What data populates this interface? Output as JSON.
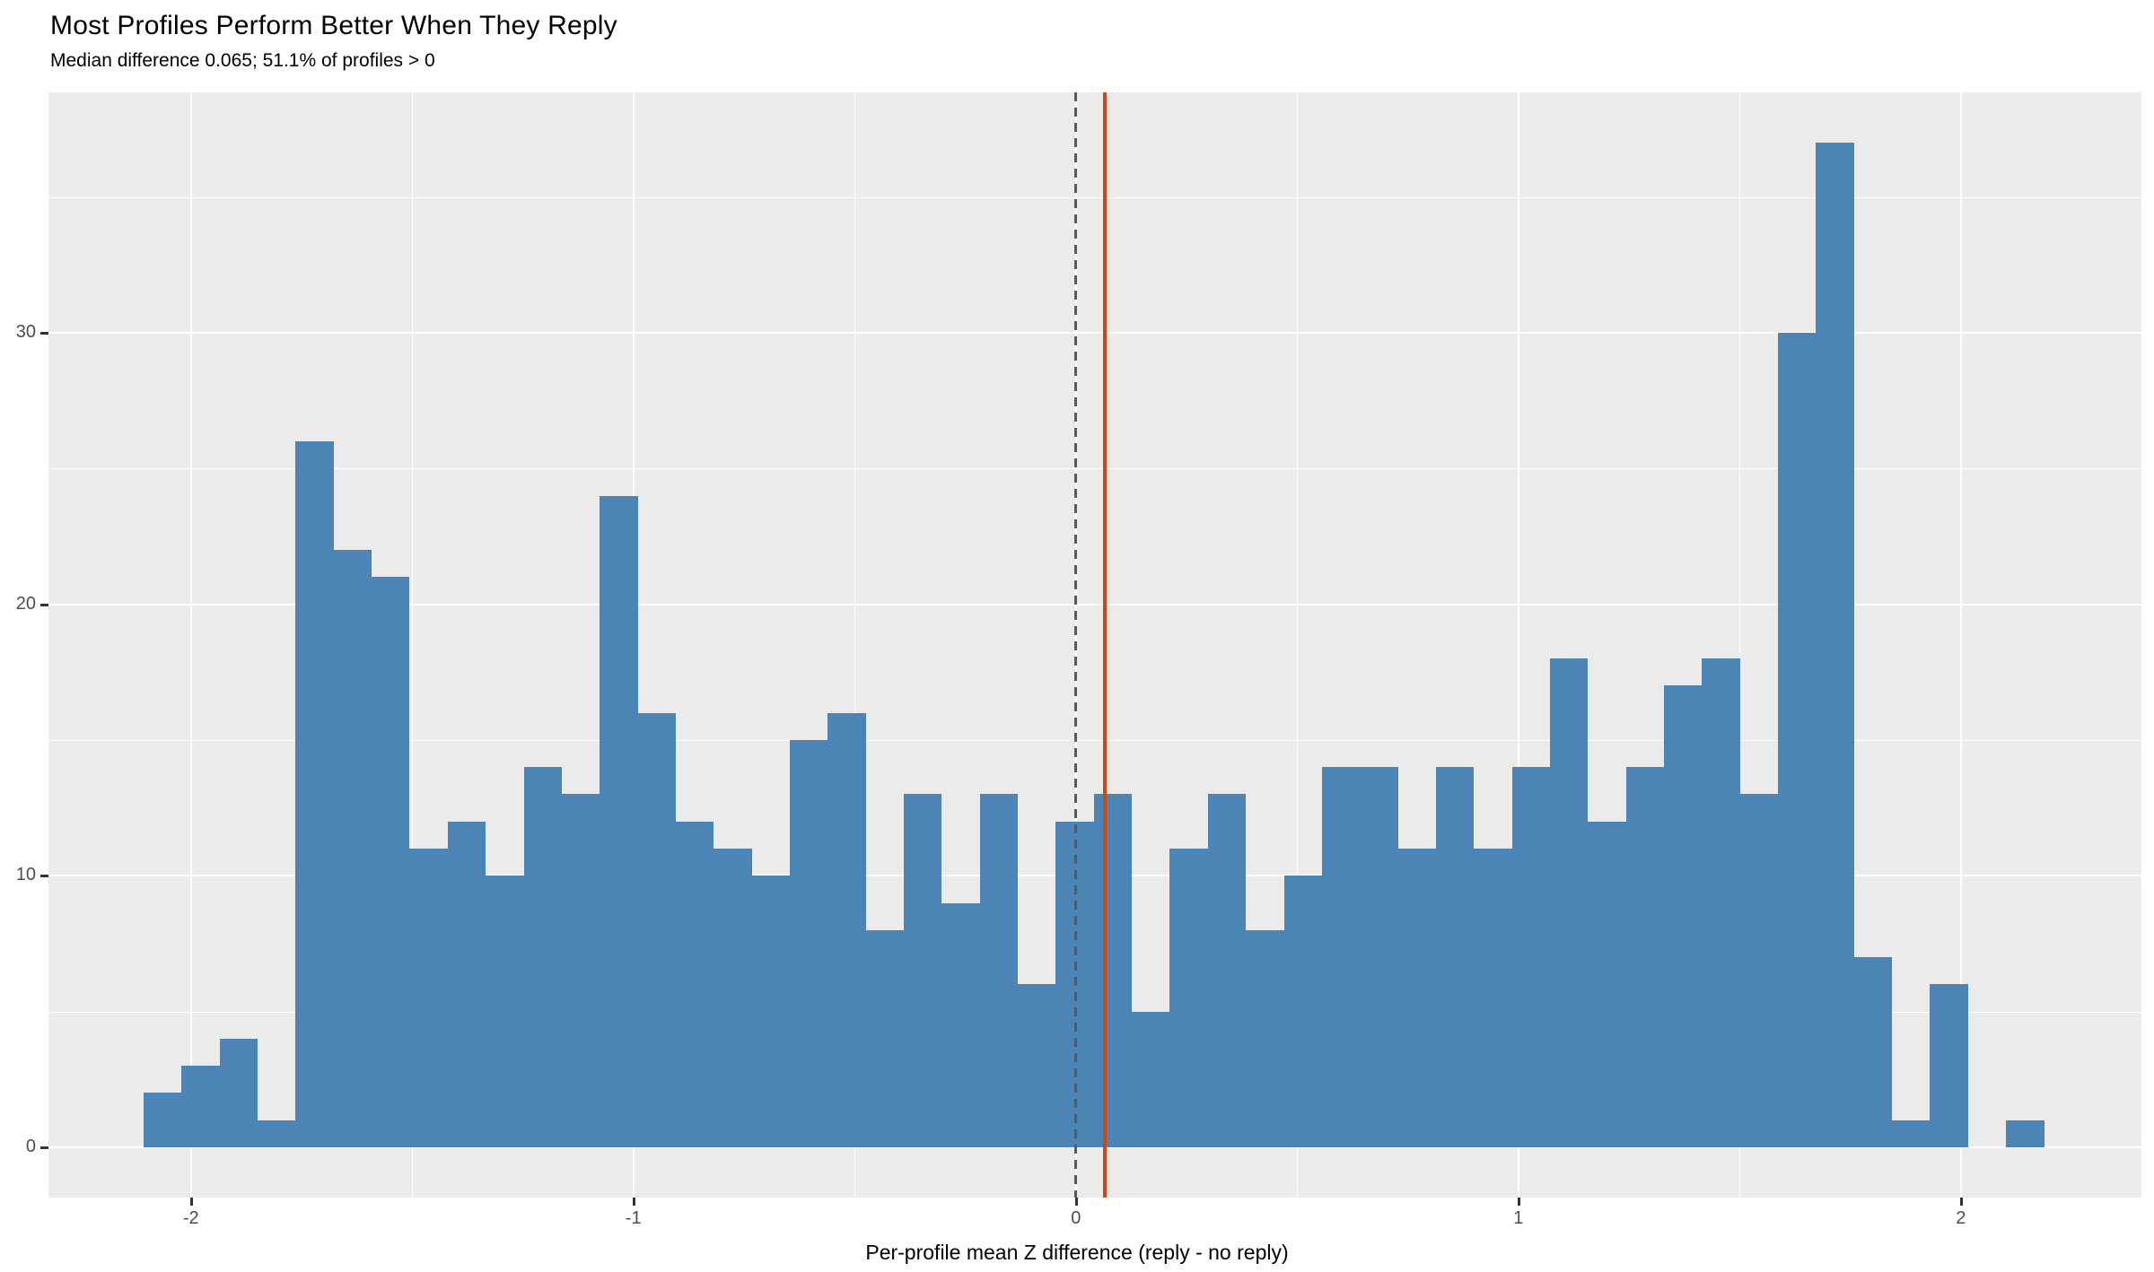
{
  "header": {
    "title": "Most Profiles Perform Better When They Reply",
    "subtitle": "Median difference 0.065; 51.1% of profiles > 0"
  },
  "chart_data": {
    "type": "bar",
    "subtype": "histogram",
    "title": "Most Profiles Perform Better When They Reply",
    "subtitle": "Median difference 0.065; 51.1% of profiles > 0",
    "xlabel": "Per-profile mean Z difference (reply - no reply)",
    "ylabel": "",
    "bins": {
      "start": -2.107,
      "width": 0.0859
    },
    "counts": [
      2,
      3,
      4,
      1,
      26,
      22,
      21,
      11,
      12,
      10,
      14,
      13,
      24,
      16,
      12,
      11,
      10,
      15,
      16,
      8,
      13,
      9,
      13,
      6,
      12,
      13,
      5,
      11,
      13,
      8,
      10,
      14,
      14,
      11,
      14,
      11,
      14,
      18,
      12,
      14,
      17,
      18,
      13,
      30,
      37,
      7,
      1,
      6,
      0,
      1
    ],
    "x_ticks": [
      -2,
      -1,
      0,
      1,
      2
    ],
    "x_tick_labels": [
      "-2",
      "-1",
      "0",
      "1",
      "2"
    ],
    "x_minor_ticks": [
      -1.5,
      -0.5,
      0.5,
      1.5
    ],
    "y_ticks": [
      0,
      10,
      20,
      30
    ],
    "y_tick_labels": [
      "0",
      "10",
      "20",
      "30"
    ],
    "y_minor_ticks": [
      5,
      15,
      25,
      35
    ],
    "xlim": [
      -2.322,
      2.408
    ],
    "ylim": [
      -1.85,
      38.85
    ],
    "grid": true,
    "legend_position": "none",
    "reference_lines": [
      {
        "x": 0,
        "style": "dashed",
        "color": "#595959",
        "label": "zero"
      },
      {
        "x": 0.065,
        "style": "solid",
        "color": "#CB4714",
        "label": "median"
      }
    ],
    "colors": {
      "bar_fill": "#4C85B5",
      "panel_background": "#EBEBEB",
      "gridline": "#FFFFFF",
      "tick_label": "#4D4D4D",
      "tick_mark": "#333333",
      "title_text": "#000000"
    }
  }
}
